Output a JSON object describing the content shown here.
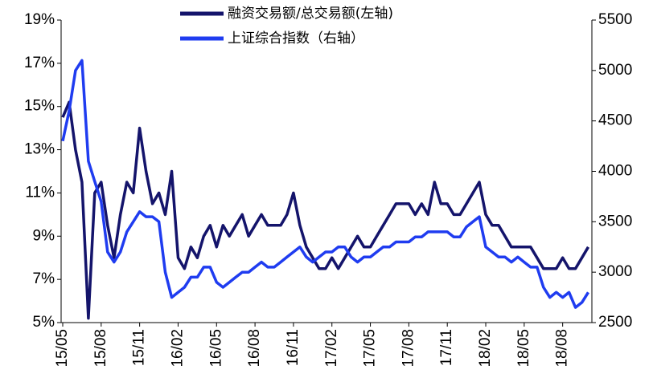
{
  "chart_data": {
    "type": "line",
    "categories": [
      "15/05",
      null,
      null,
      null,
      null,
      null,
      "15/08",
      null,
      null,
      null,
      null,
      null,
      "15/11",
      null,
      null,
      null,
      null,
      null,
      "16/02",
      null,
      null,
      null,
      null,
      null,
      "16/05",
      null,
      null,
      null,
      null,
      null,
      "16/08",
      null,
      null,
      null,
      null,
      null,
      "16/11",
      null,
      null,
      null,
      null,
      null,
      "17/02",
      null,
      null,
      null,
      null,
      null,
      "17/05",
      null,
      null,
      null,
      null,
      null,
      "17/08",
      null,
      null,
      null,
      null,
      null,
      "17/11",
      null,
      null,
      null,
      null,
      null,
      "18/02",
      null,
      null,
      null,
      null,
      null,
      "18/05",
      null,
      null,
      null,
      null,
      null,
      "18/08",
      null,
      null,
      null,
      null
    ],
    "series": [
      {
        "name": "融资交易额/总交易额(左轴)",
        "color": "#14146b",
        "values": [
          14.5,
          15.2,
          13,
          11.5,
          5.2,
          11,
          11.5,
          9.5,
          8,
          10,
          11.5,
          11,
          14,
          12,
          10.5,
          11,
          10,
          12,
          8,
          7.5,
          8.5,
          8,
          9,
          9.5,
          8.5,
          9.5,
          9,
          9.5,
          10,
          9,
          9.5,
          10,
          9.5,
          9.5,
          9.5,
          10,
          11,
          9.5,
          8.5,
          8,
          7.5,
          7.5,
          8,
          7.5,
          8,
          8.5,
          9,
          8.5,
          8.5,
          9,
          9.5,
          10,
          10.5,
          10.5,
          10.5,
          10,
          10.5,
          10,
          11.5,
          10.5,
          10.5,
          10,
          10,
          10.5,
          11,
          11.5,
          10,
          9.5,
          9.5,
          9,
          8.5,
          8.5,
          8.5,
          8.5,
          8,
          7.5,
          7.5,
          7.5,
          8,
          7.5,
          7.5,
          8,
          8.5
        ]
      },
      {
        "name": "上证综合指数（右轴）",
        "color": "#1f3cf0",
        "axis": "y2",
        "values": [
          4300,
          4600,
          5000,
          5100,
          4100,
          3900,
          3700,
          3200,
          3100,
          3200,
          3400,
          3500,
          3600,
          3550,
          3550,
          3500,
          3000,
          2750,
          2800,
          2850,
          2950,
          2950,
          3050,
          3050,
          2900,
          2850,
          2900,
          2950,
          3000,
          3000,
          3050,
          3100,
          3050,
          3050,
          3100,
          3150,
          3200,
          3250,
          3150,
          3100,
          3150,
          3200,
          3200,
          3250,
          3250,
          3150,
          3100,
          3150,
          3150,
          3200,
          3250,
          3250,
          3300,
          3300,
          3300,
          3350,
          3350,
          3400,
          3400,
          3400,
          3400,
          3350,
          3350,
          3450,
          3500,
          3550,
          3250,
          3200,
          3150,
          3150,
          3100,
          3150,
          3100,
          3050,
          3050,
          2850,
          2750,
          2800,
          2750,
          2800,
          2650,
          2700,
          2800
        ]
      }
    ],
    "ylim": [
      5,
      19
    ],
    "yticks": [
      {
        "value": 5,
        "label": "5%"
      },
      {
        "value": 7,
        "label": "7%"
      },
      {
        "value": 9,
        "label": "9%"
      },
      {
        "value": 11,
        "label": "11%"
      },
      {
        "value": 13,
        "label": "13%"
      },
      {
        "value": 15,
        "label": "15%"
      },
      {
        "value": 17,
        "label": "17%"
      },
      {
        "value": 19,
        "label": "19%"
      }
    ],
    "y2lim": [
      2500,
      5500
    ],
    "y2ticks": [
      2500,
      3000,
      3500,
      4000,
      4500,
      5000,
      5500
    ],
    "legend": "top"
  }
}
